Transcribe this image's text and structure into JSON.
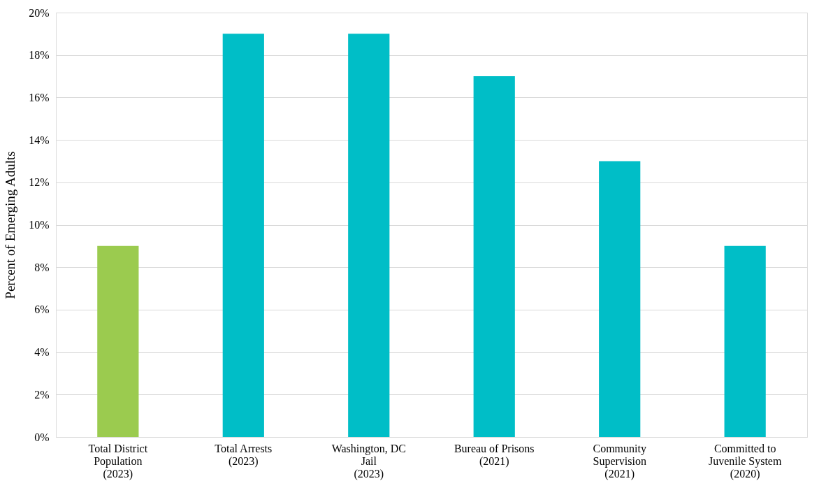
{
  "chart_data": {
    "type": "bar",
    "ylabel": "Percent of Emerging Adults",
    "categories": [
      "Total District\nPopulation\n(2023)",
      "Total Arrests\n(2023)",
      "Washington, DC\nJail\n(2023)",
      "Bureau of Prisons\n(2021)",
      "Community\nSupervision\n(2021)",
      "Committed to\nJuvenile System\n(2020)"
    ],
    "values": [
      9,
      19,
      19,
      17,
      13,
      9
    ],
    "colors": [
      "#9bcb4f",
      "#00bec7",
      "#00bec7",
      "#00bec7",
      "#00bec7",
      "#00bec7"
    ],
    "ylim": [
      0,
      20
    ],
    "yticks": [
      {
        "value": 0,
        "label": "0%"
      },
      {
        "value": 2,
        "label": "2%"
      },
      {
        "value": 4,
        "label": "4%"
      },
      {
        "value": 6,
        "label": "6%"
      },
      {
        "value": 8,
        "label": "8%"
      },
      {
        "value": 10,
        "label": "10%"
      },
      {
        "value": 12,
        "label": "12%"
      },
      {
        "value": 14,
        "label": "14%"
      },
      {
        "value": 16,
        "label": "16%"
      },
      {
        "value": 18,
        "label": "18%"
      },
      {
        "value": 20,
        "label": "20%"
      }
    ],
    "grid": "y",
    "legend": false
  }
}
